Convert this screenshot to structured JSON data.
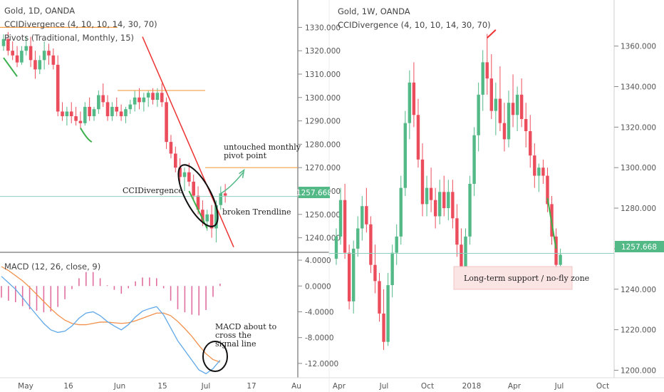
{
  "left_chart": {
    "title": "Gold, 1D, OANDA",
    "indicator1": "CCIDivergence (4, 10, 10, 14, 30, 70)",
    "indicator2": "Pivots (Traditional, Monthly, 15)",
    "price_ticks": [
      "1330.000",
      "1320.000",
      "1310.000",
      "1300.000",
      "1290.000",
      "1280.000",
      "1270.000",
      "1260.000",
      "1250.000",
      "1240.000"
    ],
    "current_price": "1257.668",
    "x_ticks": [
      "May",
      "16",
      "Jun",
      "15",
      "Jul",
      "17",
      "Au"
    ],
    "annotations": {
      "pivot": "untouched monthly pivot point",
      "divergence": "CCIDivergence",
      "trendline": "broken Trendline",
      "macd_cross": "MACD about to cross the signal line"
    }
  },
  "macd_pane": {
    "title": "MACD (12, 26, close, 9)",
    "ticks": [
      "4.0000",
      "0.0000",
      "-4.0000",
      "-8.0000",
      "-12.0000"
    ]
  },
  "right_chart": {
    "title": "Gold, 1W, OANDA",
    "indicator1": "CCIDivergence (4, 10, 10, 14, 30, 70)",
    "price_ticks": [
      "1360.000",
      "1340.000",
      "1320.000",
      "1300.000",
      "1280.000",
      "1260.000",
      "1240.000",
      "1220.000",
      "1200.000"
    ],
    "current_price": "1257.668",
    "x_ticks": [
      "Apr",
      "Jul",
      "Oct",
      "2018",
      "Apr",
      "Jul",
      "Oct"
    ],
    "annotations": {
      "zone": "Long-term support / no-fly zone"
    }
  },
  "colors": {
    "up": "#53b987",
    "down": "#eb4d5c",
    "accent_orange": "#f5a047",
    "trend_red": "#ee3333",
    "cci_green": "#3bb04b",
    "price_line": "#8fcfc0",
    "macd_blue": "#5fa8e8",
    "macd_orange": "#f2904b",
    "hist_pink": "#e06fa0"
  },
  "chart_data": [
    {
      "type": "candlestick",
      "title": "Gold, 1D, OANDA",
      "ylim": [
        1235,
        1335
      ],
      "candles": [
        [
          1322,
          1327,
          1320,
          1325
        ],
        [
          1325,
          1328,
          1318,
          1320
        ],
        [
          1320,
          1324,
          1316,
          1318
        ],
        [
          1318,
          1322,
          1313,
          1315
        ],
        [
          1315,
          1322,
          1314,
          1320
        ],
        [
          1320,
          1326,
          1318,
          1322
        ],
        [
          1322,
          1326,
          1313,
          1316
        ],
        [
          1316,
          1320,
          1308,
          1312
        ],
        [
          1312,
          1318,
          1310,
          1316
        ],
        [
          1316,
          1324,
          1312,
          1320
        ],
        [
          1320,
          1323,
          1314,
          1318
        ],
        [
          1318,
          1321,
          1312,
          1314
        ],
        [
          1314,
          1318,
          1292,
          1294
        ],
        [
          1294,
          1298,
          1290,
          1292
        ],
        [
          1292,
          1296,
          1288,
          1294
        ],
        [
          1294,
          1298,
          1289,
          1292
        ],
        [
          1292,
          1296,
          1288,
          1290
        ],
        [
          1290,
          1294,
          1287,
          1289
        ],
        [
          1289,
          1298,
          1288,
          1296
        ],
        [
          1296,
          1300,
          1290,
          1292
        ],
        [
          1292,
          1296,
          1290,
          1295
        ],
        [
          1295,
          1303,
          1293,
          1301
        ],
        [
          1301,
          1306,
          1296,
          1298
        ],
        [
          1298,
          1301,
          1290,
          1292
        ],
        [
          1292,
          1298,
          1290,
          1296
        ],
        [
          1296,
          1300,
          1292,
          1294
        ],
        [
          1294,
          1297,
          1290,
          1292
        ],
        [
          1292,
          1296,
          1289,
          1295
        ],
        [
          1295,
          1299,
          1293,
          1297
        ],
        [
          1297,
          1303,
          1294,
          1300
        ],
        [
          1300,
          1304,
          1295,
          1298
        ],
        [
          1298,
          1302,
          1294,
          1300
        ],
        [
          1300,
          1303,
          1296,
          1302
        ],
        [
          1302,
          1304,
          1297,
          1299
        ],
        [
          1299,
          1304,
          1296,
          1302
        ],
        [
          1302,
          1306,
          1296,
          1298
        ],
        [
          1298,
          1300,
          1278,
          1281
        ],
        [
          1281,
          1284,
          1274,
          1276
        ],
        [
          1276,
          1279,
          1268,
          1270
        ],
        [
          1270,
          1274,
          1264,
          1266
        ],
        [
          1266,
          1270,
          1260,
          1268
        ],
        [
          1268,
          1272,
          1262,
          1264
        ],
        [
          1264,
          1267,
          1256,
          1258
        ],
        [
          1258,
          1262,
          1250,
          1252
        ],
        [
          1252,
          1256,
          1245,
          1247
        ],
        [
          1247,
          1252,
          1243,
          1250
        ],
        [
          1250,
          1254,
          1240,
          1244
        ],
        [
          1244,
          1256,
          1238,
          1254
        ],
        [
          1254,
          1262,
          1252,
          1259
        ],
        [
          1259,
          1263,
          1255,
          1258
        ]
      ]
    },
    {
      "type": "line",
      "title": "MACD (12, 26, close, 9)",
      "ylim": [
        -14,
        5
      ],
      "series": [
        {
          "name": "MACD",
          "values": [
            1.5,
            0.5,
            -0.5,
            -1.8,
            -3.2,
            -4.5,
            -5.8,
            -6.8,
            -7.2,
            -7.0,
            -6.2,
            -5.0,
            -4.2,
            -4.0,
            -4.6,
            -5.5,
            -6.2,
            -6.8,
            -6.0,
            -4.8,
            -3.9,
            -3.5,
            -3.2,
            -4.5,
            -6.5,
            -8.5,
            -10.0,
            -11.5,
            -13.0,
            -13.6,
            -12.8,
            -11.5
          ]
        },
        {
          "name": "Signal",
          "values": [
            3.0,
            2.4,
            1.6,
            0.8,
            -0.2,
            -1.3,
            -2.4,
            -3.5,
            -4.5,
            -5.3,
            -5.8,
            -6.0,
            -6.0,
            -5.8,
            -5.6,
            -5.6,
            -5.7,
            -5.8,
            -5.7,
            -5.4,
            -5.0,
            -4.6,
            -4.2,
            -4.2,
            -4.6,
            -5.5,
            -6.6,
            -7.8,
            -9.2,
            -10.5,
            -11.4,
            -11.8
          ]
        }
      ]
    },
    {
      "type": "candlestick",
      "title": "Gold, 1W, OANDA",
      "ylim": [
        1197,
        1375
      ],
      "candles": [
        [
          1255,
          1270,
          1252,
          1266
        ],
        [
          1266,
          1290,
          1262,
          1284
        ],
        [
          1284,
          1292,
          1255,
          1258
        ],
        [
          1258,
          1262,
          1230,
          1234
        ],
        [
          1234,
          1264,
          1228,
          1260
        ],
        [
          1260,
          1276,
          1256,
          1270
        ],
        [
          1270,
          1286,
          1264,
          1281
        ],
        [
          1281,
          1290,
          1268,
          1272
        ],
        [
          1272,
          1276,
          1248,
          1252
        ],
        [
          1252,
          1262,
          1238,
          1244
        ],
        [
          1244,
          1248,
          1224,
          1228
        ],
        [
          1228,
          1240,
          1210,
          1214
        ],
        [
          1214,
          1248,
          1212,
          1242
        ],
        [
          1242,
          1262,
          1236,
          1258
        ],
        [
          1258,
          1272,
          1252,
          1266
        ],
        [
          1266,
          1296,
          1262,
          1290
        ],
        [
          1290,
          1328,
          1286,
          1322
        ],
        [
          1322,
          1348,
          1314,
          1342
        ],
        [
          1342,
          1352,
          1320,
          1326
        ],
        [
          1326,
          1334,
          1300,
          1304
        ],
        [
          1304,
          1312,
          1276,
          1282
        ],
        [
          1282,
          1296,
          1276,
          1290
        ],
        [
          1290,
          1300,
          1278,
          1284
        ],
        [
          1284,
          1290,
          1270,
          1276
        ],
        [
          1276,
          1294,
          1272,
          1288
        ],
        [
          1288,
          1296,
          1276,
          1280
        ],
        [
          1280,
          1294,
          1274,
          1288
        ],
        [
          1288,
          1294,
          1270,
          1275
        ],
        [
          1275,
          1282,
          1256,
          1262
        ],
        [
          1262,
          1270,
          1242,
          1248
        ],
        [
          1248,
          1270,
          1244,
          1266
        ],
        [
          1266,
          1296,
          1262,
          1292
        ],
        [
          1292,
          1320,
          1286,
          1316
        ],
        [
          1316,
          1342,
          1308,
          1336
        ],
        [
          1336,
          1358,
          1328,
          1352
        ],
        [
          1352,
          1366,
          1336,
          1344
        ],
        [
          1344,
          1356,
          1324,
          1328
        ],
        [
          1328,
          1342,
          1316,
          1334
        ],
        [
          1334,
          1350,
          1318,
          1322
        ],
        [
          1322,
          1332,
          1308,
          1314
        ],
        [
          1314,
          1338,
          1310,
          1332
        ],
        [
          1332,
          1346,
          1320,
          1326
        ],
        [
          1326,
          1340,
          1318,
          1336
        ],
        [
          1336,
          1344,
          1320,
          1324
        ],
        [
          1324,
          1332,
          1310,
          1318
        ],
        [
          1318,
          1326,
          1300,
          1306
        ],
        [
          1306,
          1312,
          1290,
          1296
        ],
        [
          1296,
          1302,
          1288,
          1300
        ],
        [
          1300,
          1304,
          1292,
          1296
        ],
        [
          1296,
          1300,
          1278,
          1282
        ],
        [
          1282,
          1286,
          1262,
          1266
        ],
        [
          1266,
          1270,
          1248,
          1252
        ],
        [
          1252,
          1260,
          1250,
          1257
        ]
      ]
    }
  ]
}
